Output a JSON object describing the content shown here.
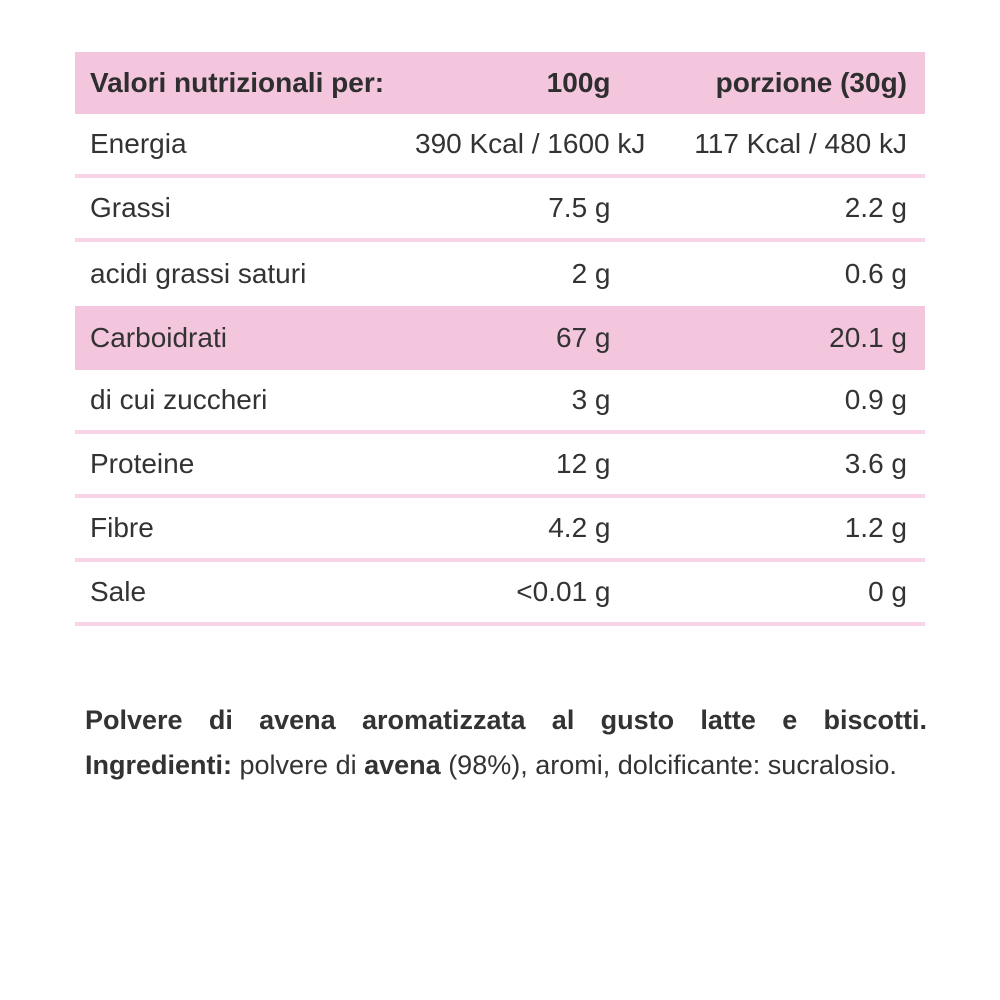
{
  "colors": {
    "header_bg": "#f3c6dd",
    "highlight_row_bg": "#f3c6dd",
    "divider_line": "#f7d3e6",
    "text": "#333333",
    "background": "#ffffff"
  },
  "table": {
    "header": {
      "title": "Valori nutrizionali per:",
      "col_100g": "100g",
      "col_portion": "porzione (30g)"
    },
    "rows": [
      {
        "label": "Energia",
        "per_100g": "390 Kcal / 1600 kJ",
        "per_portion": "117 Kcal / 480 kJ",
        "highlight": false
      },
      {
        "label": "Grassi",
        "per_100g": "7.5 g",
        "per_portion": "2.2 g",
        "highlight": false
      },
      {
        "label": "acidi grassi saturi",
        "per_100g": "2 g",
        "per_portion": "0.6 g",
        "highlight": false
      },
      {
        "label": "Carboidrati",
        "per_100g": "67 g",
        "per_portion": "20.1 g",
        "highlight": true
      },
      {
        "label": "di cui zuccheri",
        "per_100g": "3 g",
        "per_portion": "0.9 g",
        "highlight": false
      },
      {
        "label": "Proteine",
        "per_100g": "12 g",
        "per_portion": "3.6 g",
        "highlight": false
      },
      {
        "label": "Fibre",
        "per_100g": "4.2 g",
        "per_portion": "1.2 g",
        "highlight": false
      },
      {
        "label": "Sale",
        "per_100g": "<0.01 g",
        "per_portion": "0 g",
        "highlight": false
      }
    ]
  },
  "description": {
    "product_sentence": "Polvere di avena aromatizzata al gusto latte e biscotti.",
    "ingredients_label": "Ingredienti:",
    "ingredients_part1": "polvere di",
    "allergen": "avena",
    "ingredients_part2": "(98%), aromi, dolcificante: sucralosio."
  }
}
